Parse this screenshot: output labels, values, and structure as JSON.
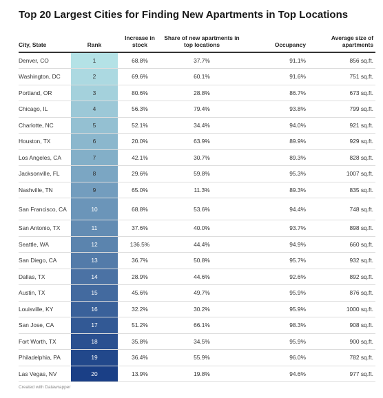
{
  "title": "Top 20 Largest Cities for Finding New Apartments in Top Locations",
  "columns": {
    "city": "City, State",
    "rank": "Rank",
    "increase": "Increase in stock",
    "share": "Share of new apartments in top locations",
    "occupancy": "Occupancy",
    "size": "Average size of apartments"
  },
  "rows": [
    {
      "city": "Denver, CO",
      "rank": "1",
      "increase": "68.8%",
      "share": "37.7%",
      "occupancy": "91.1%",
      "size": "856 sq.ft."
    },
    {
      "city": "Washington, DC",
      "rank": "2",
      "increase": "69.6%",
      "share": "60.1%",
      "occupancy": "91.6%",
      "size": "751 sq.ft."
    },
    {
      "city": "Portland, OR",
      "rank": "3",
      "increase": "80.6%",
      "share": "28.8%",
      "occupancy": "86.7%",
      "size": "673 sq.ft."
    },
    {
      "city": "Chicago, IL",
      "rank": "4",
      "increase": "56.3%",
      "share": "79.4%",
      "occupancy": "93.8%",
      "size": "799 sq.ft."
    },
    {
      "city": "Charlotte, NC",
      "rank": "5",
      "increase": "52.1%",
      "share": "34.4%",
      "occupancy": "94.0%",
      "size": "921 sq.ft."
    },
    {
      "city": "Houston, TX",
      "rank": "6",
      "increase": "20.0%",
      "share": "63.9%",
      "occupancy": "89.9%",
      "size": "929 sq.ft."
    },
    {
      "city": "Los Angeles, CA",
      "rank": "7",
      "increase": "42.1%",
      "share": "30.7%",
      "occupancy": "89.3%",
      "size": "828 sq.ft."
    },
    {
      "city": "Jacksonville, FL",
      "rank": "8",
      "increase": "29.6%",
      "share": "59.8%",
      "occupancy": "95.3%",
      "size": "1007 sq.ft."
    },
    {
      "city": "Nashville, TN",
      "rank": "9",
      "increase": "65.0%",
      "share": "11.3%",
      "occupancy": "89.3%",
      "size": "835 sq.ft."
    },
    {
      "city": "San Francisco, CA",
      "rank": "10",
      "increase": "68.8%",
      "share": "53.6%",
      "occupancy": "94.4%",
      "size": "748 sq.ft."
    },
    {
      "city": "San Antonio, TX",
      "rank": "11",
      "increase": "37.6%",
      "share": "40.0%",
      "occupancy": "93.7%",
      "size": "898 sq.ft."
    },
    {
      "city": "Seattle, WA",
      "rank": "12",
      "increase": "136.5%",
      "share": "44.4%",
      "occupancy": "94.9%",
      "size": "660 sq.ft."
    },
    {
      "city": "San Diego, CA",
      "rank": "13",
      "increase": "36.7%",
      "share": "50.8%",
      "occupancy": "95.7%",
      "size": "932 sq.ft."
    },
    {
      "city": "Dallas, TX",
      "rank": "14",
      "increase": "28.9%",
      "share": "44.6%",
      "occupancy": "92.6%",
      "size": "892 sq.ft."
    },
    {
      "city": "Austin, TX",
      "rank": "15",
      "increase": "45.6%",
      "share": "49.7%",
      "occupancy": "95.9%",
      "size": "876 sq.ft."
    },
    {
      "city": "Louisville, KY",
      "rank": "16",
      "increase": "32.2%",
      "share": "30.2%",
      "occupancy": "95.9%",
      "size": "1000 sq.ft."
    },
    {
      "city": "San Jose, CA",
      "rank": "17",
      "increase": "51.2%",
      "share": "66.1%",
      "occupancy": "98.3%",
      "size": "908 sq.ft."
    },
    {
      "city": "Fort Worth, TX",
      "rank": "18",
      "increase": "35.8%",
      "share": "34.5%",
      "occupancy": "95.9%",
      "size": "900 sq.ft."
    },
    {
      "city": "Philadelphia, PA",
      "rank": "19",
      "increase": "36.4%",
      "share": "55.9%",
      "occupancy": "96.0%",
      "size": "782 sq.ft."
    },
    {
      "city": "Las Vegas, NV",
      "rank": "20",
      "increase": "13.9%",
      "share": "19.8%",
      "occupancy": "94.6%",
      "size": "977 sq.ft."
    }
  ],
  "rank_colors": {
    "low": "#b4e2e6",
    "high": "#1a3f86"
  },
  "footer": "Created with Datawrapper"
}
